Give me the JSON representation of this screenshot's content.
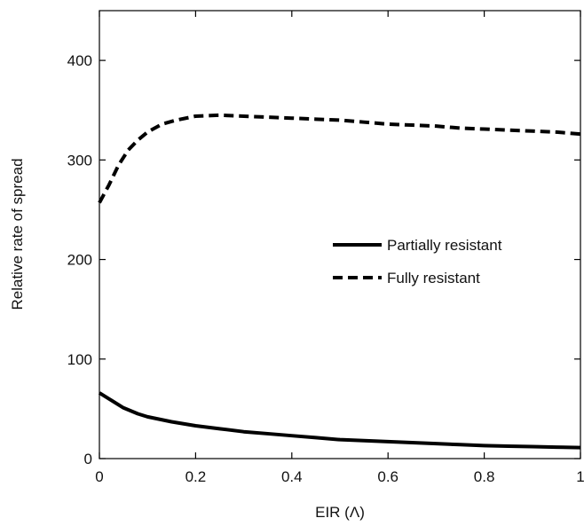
{
  "chart_data": {
    "type": "line",
    "title": "",
    "xlabel": "EIR (Λ)",
    "ylabel": "Relative rate of spread",
    "xlim": [
      0,
      1
    ],
    "ylim": [
      0,
      450
    ],
    "xticks": [
      0,
      0.2,
      0.4,
      0.6,
      0.8,
      1
    ],
    "xtick_labels": [
      "0",
      "0.2",
      "0.4",
      "0.6",
      "0.8",
      "1"
    ],
    "yticks": [
      0,
      100,
      200,
      300,
      400
    ],
    "ytick_labels": [
      "0",
      "100",
      "200",
      "300",
      "400"
    ],
    "grid": false,
    "legend_position": "center-right",
    "series": [
      {
        "name": "Partially resistant",
        "style": "solid",
        "color": "#000000",
        "x": [
          0,
          0.02,
          0.05,
          0.08,
          0.1,
          0.15,
          0.2,
          0.25,
          0.3,
          0.35,
          0.4,
          0.45,
          0.5,
          0.55,
          0.6,
          0.65,
          0.7,
          0.75,
          0.8,
          0.85,
          0.9,
          0.95,
          1
        ],
        "y": [
          66,
          60,
          51,
          45,
          42,
          37,
          33,
          30,
          27,
          25,
          23,
          21,
          19,
          18,
          17,
          16,
          15,
          14,
          13,
          12.5,
          12,
          11.5,
          11
        ]
      },
      {
        "name": "Fully resistant",
        "style": "dashed",
        "color": "#000000",
        "x": [
          0,
          0.02,
          0.04,
          0.06,
          0.08,
          0.1,
          0.13,
          0.16,
          0.2,
          0.25,
          0.3,
          0.35,
          0.4,
          0.45,
          0.5,
          0.55,
          0.6,
          0.65,
          0.7,
          0.75,
          0.8,
          0.85,
          0.9,
          0.95,
          1
        ],
        "y": [
          257,
          275,
          295,
          310,
          320,
          328,
          336,
          340,
          344,
          345,
          344,
          343,
          342,
          341,
          340,
          338,
          336,
          335,
          334,
          332,
          331,
          330,
          329,
          328,
          326
        ]
      }
    ]
  }
}
